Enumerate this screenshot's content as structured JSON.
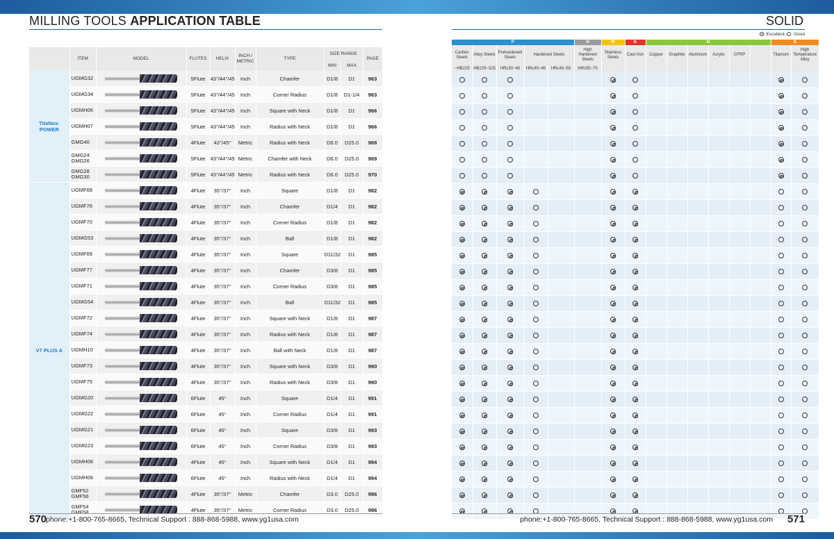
{
  "header": {
    "title_light": "MILLING TOOLS ",
    "title_bold": "APPLICATION TABLE",
    "right_title": "SOLID",
    "legend_excellent": ": Excellent",
    "legend_good": ": Good"
  },
  "left_columns": {
    "item": "ITEM",
    "model": "MODEL",
    "flutes": "FLUTES",
    "helix": "HELIX",
    "inch_metric": "INCH / METRIC",
    "type": "TYPE",
    "size_range": "SIZE RANGE",
    "min": "MIN",
    "max": "MAX",
    "page": "PAGE"
  },
  "series": [
    {
      "name": "TitaNox-POWER",
      "rows": 7
    },
    {
      "name": "V7 PLUS A",
      "rows": 21
    }
  ],
  "rows": [
    {
      "item": "UGMG32",
      "flutes": "5Flute",
      "helix": "43°/44°/45°",
      "unit": "Inch",
      "type": "Chamfer",
      "min": "D1/8",
      "max": "D1",
      "page": "963",
      "ratings": [
        "G",
        "G",
        "G",
        "",
        "",
        "",
        "E",
        "G",
        "",
        "",
        "",
        "",
        "",
        "",
        "E",
        "G"
      ]
    },
    {
      "item": "UGMG34",
      "flutes": "5Flute",
      "helix": "43°/44°/45°",
      "unit": "Inch",
      "type": "Corner Radius",
      "min": "D1/8",
      "max": "D1-1/4",
      "page": "963",
      "ratings": [
        "G",
        "G",
        "G",
        "",
        "",
        "",
        "E",
        "G",
        "",
        "",
        "",
        "",
        "",
        "",
        "E",
        "G"
      ]
    },
    {
      "item": "UGMH06",
      "flutes": "5Flute",
      "helix": "43°/44°/45°",
      "unit": "Inch",
      "type": "Square with Neck",
      "min": "D1/8",
      "max": "D1",
      "page": "966",
      "ratings": [
        "G",
        "G",
        "G",
        "",
        "",
        "",
        "E",
        "G",
        "",
        "",
        "",
        "",
        "",
        "",
        "E",
        "G"
      ]
    },
    {
      "item": "UGMH07",
      "flutes": "5Flute",
      "helix": "43°/44°/45°",
      "unit": "Inch",
      "type": "Radius with Neck",
      "min": "D1/8",
      "max": "D1",
      "page": "966",
      "ratings": [
        "G",
        "G",
        "G",
        "",
        "",
        "",
        "E",
        "G",
        "",
        "",
        "",
        "",
        "",
        "",
        "E",
        "G"
      ]
    },
    {
      "item": "GMG40",
      "flutes": "4Flute",
      "helix": "43°/45°",
      "unit": "Metric",
      "type": "Radius with Neck",
      "min": "D6.0",
      "max": "D25.0",
      "page": "968",
      "ratings": [
        "G",
        "G",
        "G",
        "",
        "",
        "",
        "E",
        "G",
        "",
        "",
        "",
        "",
        "",
        "",
        "E",
        "G"
      ]
    },
    {
      "item": "GMG24\nGMG26",
      "flutes": "5Flute",
      "helix": "43°/44°/45°",
      "unit": "Metric",
      "type": "Chamfer with Neck",
      "min": "D6.0",
      "max": "D25.0",
      "page": "969",
      "ratings": [
        "G",
        "G",
        "G",
        "",
        "",
        "",
        "E",
        "G",
        "",
        "",
        "",
        "",
        "",
        "",
        "E",
        "G"
      ]
    },
    {
      "item": "GMG28\nGMG30",
      "flutes": "5Flute",
      "helix": "43°/44°/45°",
      "unit": "Metric",
      "type": "Radius with Neck",
      "min": "D6.0",
      "max": "D25.0",
      "page": "970",
      "ratings": [
        "G",
        "G",
        "G",
        "",
        "",
        "",
        "E",
        "G",
        "",
        "",
        "",
        "",
        "",
        "",
        "E",
        "G"
      ]
    },
    {
      "item": "UGMF68",
      "flutes": "4Flute",
      "helix": "35°/37°",
      "unit": "Inch",
      "type": "Square",
      "min": "D1/8",
      "max": "D1",
      "page": "982",
      "ratings": [
        "E",
        "E",
        "E",
        "G",
        "",
        "",
        "E",
        "E",
        "",
        "",
        "",
        "",
        "",
        "",
        "G",
        "G"
      ]
    },
    {
      "item": "UGMF76",
      "flutes": "4Flute",
      "helix": "35°/37°",
      "unit": "Inch",
      "type": "Chamfer",
      "min": "D1/4",
      "max": "D1",
      "page": "982",
      "ratings": [
        "E",
        "E",
        "E",
        "G",
        "",
        "",
        "E",
        "E",
        "",
        "",
        "",
        "",
        "",
        "",
        "G",
        "G"
      ]
    },
    {
      "item": "UGMF70",
      "flutes": "4Flute",
      "helix": "35°/37°",
      "unit": "Inch",
      "type": "Corner Radius",
      "min": "D1/8",
      "max": "D1",
      "page": "982",
      "ratings": [
        "E",
        "E",
        "E",
        "G",
        "",
        "",
        "E",
        "E",
        "",
        "",
        "",
        "",
        "",
        "",
        "G",
        "G"
      ]
    },
    {
      "item": "UGMG53",
      "flutes": "4Flute",
      "helix": "35°/37°",
      "unit": "Inch",
      "type": "Ball",
      "min": "D1/8",
      "max": "D1",
      "page": "982",
      "ratings": [
        "E",
        "E",
        "E",
        "G",
        "",
        "",
        "E",
        "E",
        "",
        "",
        "",
        "",
        "",
        "",
        "G",
        "G"
      ]
    },
    {
      "item": "UGMF69",
      "flutes": "4Flute",
      "helix": "35°/37°",
      "unit": "Inch",
      "type": "Square",
      "min": "D11/32",
      "max": "D1",
      "page": "985",
      "ratings": [
        "E",
        "E",
        "E",
        "G",
        "",
        "",
        "E",
        "E",
        "",
        "",
        "",
        "",
        "",
        "",
        "G",
        "G"
      ]
    },
    {
      "item": "UGMF77",
      "flutes": "4Flute",
      "helix": "35°/37°",
      "unit": "Inch",
      "type": "Chamfer",
      "min": "D3/8",
      "max": "D1",
      "page": "985",
      "ratings": [
        "E",
        "E",
        "E",
        "G",
        "",
        "",
        "E",
        "E",
        "",
        "",
        "",
        "",
        "",
        "",
        "G",
        "G"
      ]
    },
    {
      "item": "UGMF71",
      "flutes": "4Flute",
      "helix": "35°/37°",
      "unit": "Inch",
      "type": "Corner Radius",
      "min": "D3/8",
      "max": "D1",
      "page": "985",
      "ratings": [
        "E",
        "E",
        "E",
        "G",
        "",
        "",
        "E",
        "E",
        "",
        "",
        "",
        "",
        "",
        "",
        "G",
        "G"
      ]
    },
    {
      "item": "UGMG54",
      "flutes": "4Flute",
      "helix": "35°/37°",
      "unit": "Inch",
      "type": "Ball",
      "min": "D11/32",
      "max": "D1",
      "page": "985",
      "ratings": [
        "E",
        "E",
        "E",
        "G",
        "",
        "",
        "E",
        "E",
        "",
        "",
        "",
        "",
        "",
        "",
        "G",
        "G"
      ]
    },
    {
      "item": "UGMF72",
      "flutes": "4Flute",
      "helix": "35°/37°",
      "unit": "Inch",
      "type": "Square with Neck",
      "min": "D1/8",
      "max": "D1",
      "page": "987",
      "ratings": [
        "E",
        "E",
        "E",
        "G",
        "",
        "",
        "E",
        "E",
        "",
        "",
        "",
        "",
        "",
        "",
        "G",
        "G"
      ]
    },
    {
      "item": "UGMF74",
      "flutes": "4Flute",
      "helix": "35°/37°",
      "unit": "Inch",
      "type": "Radius with Neck",
      "min": "D1/8",
      "max": "D1",
      "page": "987",
      "ratings": [
        "E",
        "E",
        "E",
        "G",
        "",
        "",
        "E",
        "E",
        "",
        "",
        "",
        "",
        "",
        "",
        "G",
        "G"
      ]
    },
    {
      "item": "UGMH10",
      "flutes": "4Flute",
      "helix": "35°/37°",
      "unit": "Inch",
      "type": "Ball with Neck",
      "min": "D1/8",
      "max": "D1",
      "page": "987",
      "ratings": [
        "E",
        "E",
        "E",
        "G",
        "",
        "",
        "E",
        "E",
        "",
        "",
        "",
        "",
        "",
        "",
        "G",
        "G"
      ]
    },
    {
      "item": "UGMF73",
      "flutes": "4Flute",
      "helix": "35°/37°",
      "unit": "Inch",
      "type": "Square with Neck",
      "min": "D3/8",
      "max": "D1",
      "page": "990",
      "ratings": [
        "E",
        "E",
        "E",
        "G",
        "",
        "",
        "E",
        "E",
        "",
        "",
        "",
        "",
        "",
        "",
        "G",
        "G"
      ]
    },
    {
      "item": "UGMF75",
      "flutes": "4Flute",
      "helix": "35°/37°",
      "unit": "Inch",
      "type": "Radius with Neck",
      "min": "D3/8",
      "max": "D1",
      "page": "990",
      "ratings": [
        "E",
        "E",
        "E",
        "G",
        "",
        "",
        "E",
        "E",
        "",
        "",
        "",
        "",
        "",
        "",
        "G",
        "G"
      ]
    },
    {
      "item": "UGMG20",
      "flutes": "6Flute",
      "helix": "45°",
      "unit": "Inch",
      "type": "Square",
      "min": "D1/4",
      "max": "D1",
      "page": "991",
      "ratings": [
        "E",
        "E",
        "E",
        "G",
        "",
        "",
        "E",
        "E",
        "",
        "",
        "",
        "",
        "",
        "",
        "G",
        "G"
      ]
    },
    {
      "item": "UGMG22",
      "flutes": "6Flute",
      "helix": "45°",
      "unit": "Inch",
      "type": "Corner Radius",
      "min": "D1/4",
      "max": "D1",
      "page": "991",
      "ratings": [
        "E",
        "E",
        "E",
        "G",
        "",
        "",
        "E",
        "E",
        "",
        "",
        "",
        "",
        "",
        "",
        "G",
        "G"
      ]
    },
    {
      "item": "UGMG21",
      "flutes": "6Flute",
      "helix": "45°",
      "unit": "Inch",
      "type": "Square",
      "min": "D3/8",
      "max": "D1",
      "page": "993",
      "ratings": [
        "E",
        "E",
        "E",
        "G",
        "",
        "",
        "E",
        "E",
        "",
        "",
        "",
        "",
        "",
        "",
        "G",
        "G"
      ]
    },
    {
      "item": "UGMG23",
      "flutes": "6Flute",
      "helix": "45°",
      "unit": "Inch",
      "type": "Corner Radius",
      "min": "D3/8",
      "max": "D1",
      "page": "993",
      "ratings": [
        "E",
        "E",
        "E",
        "G",
        "",
        "",
        "E",
        "E",
        "",
        "",
        "",
        "",
        "",
        "",
        "G",
        "G"
      ]
    },
    {
      "item": "UGMH08",
      "flutes": "4Flute",
      "helix": "45°",
      "unit": "Inch",
      "type": "Square with Neck",
      "min": "D1/4",
      "max": "D1",
      "page": "994",
      "ratings": [
        "E",
        "E",
        "E",
        "G",
        "",
        "",
        "E",
        "E",
        "",
        "",
        "",
        "",
        "",
        "",
        "G",
        "G"
      ]
    },
    {
      "item": "UGMH09",
      "flutes": "6Flute",
      "helix": "45°",
      "unit": "Inch",
      "type": "Radius with Neck",
      "min": "D1/4",
      "max": "D1",
      "page": "994",
      "ratings": [
        "E",
        "E",
        "E",
        "G",
        "",
        "",
        "E",
        "E",
        "",
        "",
        "",
        "",
        "",
        "",
        "G",
        "G"
      ]
    },
    {
      "item": "GMF52\nGMF56",
      "flutes": "4Flute",
      "helix": "35°/37°",
      "unit": "Metric",
      "type": "Chamfer",
      "min": "D3.0",
      "max": "D25.0",
      "page": "996",
      "ratings": [
        "E",
        "E",
        "E",
        "G",
        "",
        "",
        "E",
        "E",
        "",
        "",
        "",
        "",
        "",
        "",
        "G",
        "G"
      ]
    },
    {
      "item": "GMF54\nGMF58",
      "flutes": "4Flute",
      "helix": "35°/37°",
      "unit": "Metric",
      "type": "Corner Radius",
      "min": "D3.0",
      "max": "D25.0",
      "page": "996",
      "ratings": [
        "E",
        "E",
        "E",
        "G",
        "",
        "",
        "E",
        "E",
        "",
        "",
        "",
        "",
        "",
        "",
        "G",
        "G"
      ]
    }
  ],
  "material_groups": [
    {
      "code": "P",
      "span": 5,
      "color": "#2b8fd0"
    },
    {
      "code": "H",
      "span": 1,
      "color": "#9a9a9a"
    },
    {
      "code": "M",
      "span": 1,
      "color": "#f2c300"
    },
    {
      "code": "K",
      "span": 1,
      "color": "#e0352b"
    },
    {
      "code": "N",
      "span": 6,
      "color": "#8cc63f"
    },
    {
      "code": "S",
      "span": 2,
      "color": "#f08a24"
    }
  ],
  "materials": [
    {
      "label": "Carbon Steels",
      "hardness": "~HB225"
    },
    {
      "label": "Alloy Steels",
      "hardness": "HB225~325"
    },
    {
      "label": "Prehardened Steels",
      "hardness": "HRc30~40"
    },
    {
      "label": "Hardened Steels",
      "hardness": "HRc40~45",
      "span": 2
    },
    {
      "label": "",
      "hardness": "HRc45~55",
      "covered": true
    },
    {
      "label": "High Hardened Steels",
      "hardness": "HRc55~70"
    },
    {
      "label": "Stainless Steels",
      "hardness": ""
    },
    {
      "label": "Cast Iron",
      "hardness": ""
    },
    {
      "label": "Copper",
      "hardness": ""
    },
    {
      "label": "Graphite",
      "hardness": ""
    },
    {
      "label": "Aluminum",
      "hardness": ""
    },
    {
      "label": "Acrylic",
      "hardness": ""
    },
    {
      "label": "CFRP",
      "hardness": ""
    },
    {
      "label": "",
      "hardness": ""
    },
    {
      "label": "Titanium",
      "hardness": ""
    },
    {
      "label": "High Temperature Alloy",
      "hardness": ""
    }
  ],
  "footer": {
    "left_page": "570",
    "right_page": "571",
    "left_text": "phone:+1-800-765-8665,  Technical Support : 888-868-5988,  www.yg1usa.com",
    "right_text": "phone:+1-800-765-8665,  Technical Support : 888-868-5988,  www.yg1usa.com"
  }
}
